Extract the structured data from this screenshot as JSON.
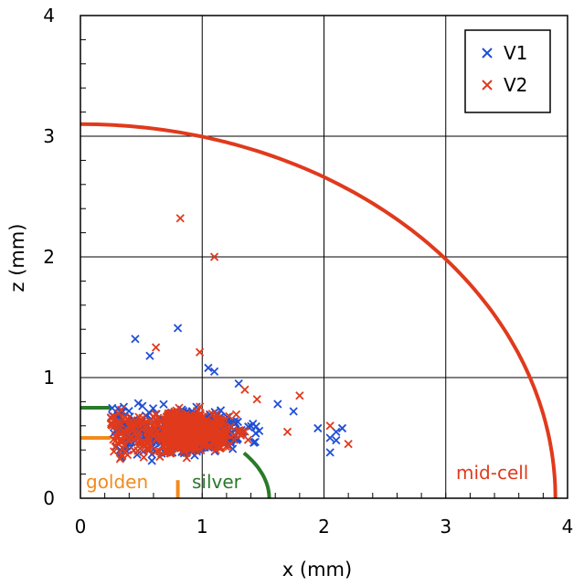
{
  "chart_data": {
    "type": "scatter",
    "xlabel": "x (mm)",
    "ylabel": "z (mm)",
    "xlim": [
      0,
      4
    ],
    "ylim": [
      0,
      4
    ],
    "xticks": [
      "0",
      "1",
      "2",
      "3",
      "4"
    ],
    "yticks": [
      "0",
      "1",
      "2",
      "3",
      "4"
    ],
    "grid": true,
    "legend_position": "top-right",
    "series": [
      {
        "name": "V1",
        "marker": "x",
        "color": "#1f4fd6",
        "cloud": {
          "x_range": [
            0.25,
            1.9
          ],
          "z_range": [
            0.3,
            1.0
          ],
          "center": [
            0.75,
            0.55
          ]
        },
        "points": [
          [
            0.45,
            1.32
          ],
          [
            0.8,
            1.41
          ],
          [
            0.57,
            1.18
          ],
          [
            1.1,
            1.05
          ],
          [
            1.05,
            1.08
          ],
          [
            1.3,
            0.95
          ],
          [
            1.95,
            0.58
          ],
          [
            2.05,
            0.5
          ],
          [
            2.1,
            0.55
          ],
          [
            2.15,
            0.58
          ],
          [
            2.05,
            0.38
          ],
          [
            2.1,
            0.48
          ],
          [
            1.75,
            0.72
          ],
          [
            1.62,
            0.78
          ]
        ]
      },
      {
        "name": "V2",
        "marker": "x",
        "color": "#e03a1c",
        "cloud": {
          "x_range": [
            0.25,
            1.8
          ],
          "z_range": [
            0.3,
            0.95
          ],
          "center": [
            0.7,
            0.55
          ]
        },
        "points": [
          [
            0.82,
            2.32
          ],
          [
            1.1,
            2.0
          ],
          [
            0.98,
            1.21
          ],
          [
            0.62,
            1.25
          ],
          [
            1.8,
            0.85
          ],
          [
            1.45,
            0.82
          ],
          [
            2.05,
            0.6
          ],
          [
            2.2,
            0.45
          ],
          [
            1.7,
            0.55
          ],
          [
            1.35,
            0.9
          ]
        ]
      }
    ],
    "curves": [
      {
        "label": "mid-cell",
        "color": "#e03a1c",
        "shape": "quarter-ellipse",
        "a": 3.9,
        "b": 3.1
      },
      {
        "label": "golden",
        "color": "#f28a1c",
        "shape": "corner",
        "x": 0.8,
        "z": 0.5
      },
      {
        "label": "silver",
        "color": "#2a7a2a",
        "shape": "quarter-ellipse-short",
        "a": 1.55,
        "b": 0.75
      }
    ],
    "annotations": [
      "golden",
      "silver",
      "mid-cell"
    ]
  }
}
